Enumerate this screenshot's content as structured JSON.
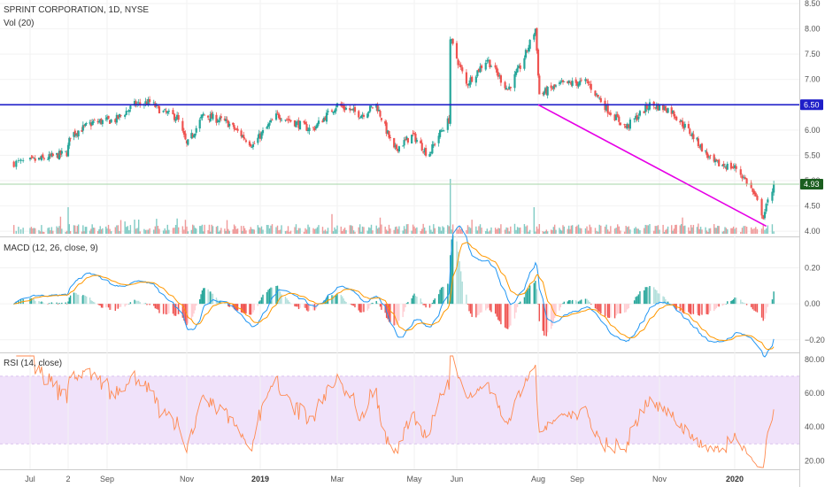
{
  "colors": {
    "up": "#26a69a",
    "down": "#ef5350",
    "vol_up": "#80cbc4",
    "vol_down": "#ef9a9a",
    "resistance_line": "#1e1ec8",
    "trend_line": "#e600e6",
    "macd_line": "#2196f3",
    "signal_line": "#ff9800",
    "rsi_line": "#ff8a50",
    "rsi_band": "#f0e2fa",
    "last_price_badge": "#1b5e20",
    "level_badge": "#1e1ec8"
  },
  "header": {
    "title": "SPRINT CORPORATION, 1D, NYSE",
    "volume_label": "Vol (20)",
    "macd_label": "MACD (12, 26, close, 9)",
    "rsi_label": "RSI (14, close)"
  },
  "badges": {
    "resistance": "6.50",
    "last_price": "4.93"
  },
  "x_axis_labels": [
    "Jul",
    "2",
    "Sep",
    "Nov",
    "2019",
    "Mar",
    "May",
    "Jun",
    "Aug",
    "Sep",
    "Nov",
    "2020"
  ],
  "chart_data": [
    {
      "type": "candlestick",
      "title": "SPRINT CORPORATION, 1D, NYSE",
      "ylim": [
        3.95,
        8.5
      ],
      "y_ticks": [
        "8.50",
        "8.00",
        "7.50",
        "7.00",
        "6.50",
        "6.00",
        "5.50",
        "5.00",
        "4.50",
        "4.00"
      ],
      "last_price": 4.93,
      "horizontal_level": 6.5,
      "trendline": {
        "from": [
          "2019-08-01",
          6.5
        ],
        "to": [
          "2020-01-23",
          4.1
        ]
      },
      "price_path": [
        [
          "2018-06-25",
          5.35
        ],
        [
          "2018-07-16",
          5.45
        ],
        [
          "2018-07-31",
          5.55
        ],
        [
          "2018-08-03",
          5.9
        ],
        [
          "2018-08-23",
          6.15
        ],
        [
          "2018-09-10",
          6.2
        ],
        [
          "2018-09-24",
          6.5
        ],
        [
          "2018-10-05",
          6.55
        ],
        [
          "2018-10-15",
          6.35
        ],
        [
          "2018-10-25",
          6.25
        ],
        [
          "2018-11-01",
          5.7
        ],
        [
          "2018-11-15",
          6.3
        ],
        [
          "2018-12-05",
          6.15
        ],
        [
          "2018-12-27",
          5.7
        ],
        [
          "2019-01-15",
          6.3
        ],
        [
          "2019-02-10",
          6.0
        ],
        [
          "2019-03-01",
          6.5
        ],
        [
          "2019-03-20",
          6.3
        ],
        [
          "2019-04-01",
          6.5
        ],
        [
          "2019-04-15",
          5.6
        ],
        [
          "2019-04-30",
          5.9
        ],
        [
          "2019-05-12",
          5.5
        ],
        [
          "2019-05-20",
          5.9
        ],
        [
          "2019-05-28",
          6.2
        ],
        [
          "2019-05-29",
          7.8
        ],
        [
          "2019-06-10",
          6.9
        ],
        [
          "2019-06-25",
          7.4
        ],
        [
          "2019-07-10",
          6.8
        ],
        [
          "2019-07-20",
          7.3
        ],
        [
          "2019-07-30",
          8.0
        ],
        [
          "2019-08-02",
          6.7
        ],
        [
          "2019-08-20",
          6.9
        ],
        [
          "2019-09-10",
          6.95
        ],
        [
          "2019-09-25",
          6.4
        ],
        [
          "2019-10-08",
          6.05
        ],
        [
          "2019-10-25",
          6.5
        ],
        [
          "2019-11-10",
          6.4
        ],
        [
          "2019-11-28",
          5.9
        ],
        [
          "2019-12-15",
          5.35
        ],
        [
          "2020-01-03",
          5.25
        ],
        [
          "2020-01-12",
          4.9
        ],
        [
          "2020-01-21",
          4.3
        ],
        [
          "2020-01-28",
          4.93
        ]
      ]
    },
    {
      "type": "bar",
      "title": "Vol (20)",
      "series": [
        {
          "name": "Volume",
          "spike_dates": [
            "2018-08-01",
            "2019-05-29",
            "2019-07-29"
          ]
        }
      ]
    },
    {
      "type": "line",
      "title": "MACD (12, 26, close, 9)",
      "ylim": [
        -0.26,
        0.36
      ],
      "y_ticks": [
        "0.20",
        "0.00",
        "−0.20"
      ],
      "series": [
        {
          "name": "MACD",
          "derived_from": "price_path"
        },
        {
          "name": "Signal"
        },
        {
          "name": "Histogram"
        }
      ]
    },
    {
      "type": "line",
      "title": "RSI (14, close)",
      "ylim": [
        16,
        82
      ],
      "y_ticks": [
        "80.00",
        "60.00",
        "40.00",
        "20.00"
      ],
      "band": [
        30,
        70
      ]
    }
  ]
}
